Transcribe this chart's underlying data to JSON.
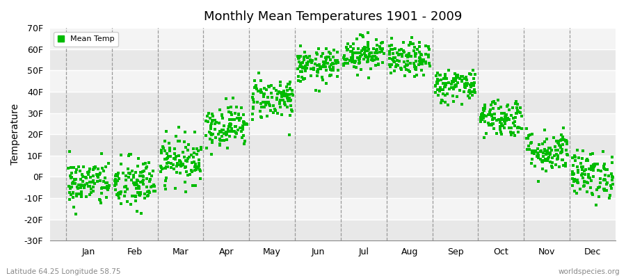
{
  "title": "Monthly Mean Temperatures 1901 - 2009",
  "ylabel": "Temperature",
  "bottom_left_label": "Latitude 64.25 Longitude 58.75",
  "bottom_right_label": "worldspecies.org",
  "legend_label": "Mean Temp",
  "ylim": [
    -30,
    70
  ],
  "yticks": [
    -30,
    -20,
    -10,
    0,
    10,
    20,
    30,
    40,
    50,
    60,
    70
  ],
  "ytick_labels": [
    "-30F",
    "-20F",
    "-10F",
    "0F",
    "10F",
    "20F",
    "30F",
    "40F",
    "50F",
    "60F",
    "70F"
  ],
  "months": [
    "Jan",
    "Feb",
    "Mar",
    "Apr",
    "May",
    "Jun",
    "Jul",
    "Aug",
    "Sep",
    "Oct",
    "Nov",
    "Dec"
  ],
  "dot_color": "#00BB00",
  "background_color": "#ffffff",
  "band_color1": "#e8e8e8",
  "band_color2": "#f4f4f4",
  "n_years": 109,
  "mean_temps_F": [
    -3.0,
    -3.5,
    8.0,
    24.0,
    37.0,
    52.0,
    58.0,
    55.0,
    43.0,
    28.0,
    12.0,
    1.0
  ],
  "std_temps_F": [
    5.5,
    6.5,
    5.5,
    5.0,
    5.0,
    4.0,
    4.0,
    4.0,
    4.0,
    4.5,
    5.0,
    5.5
  ],
  "seed": 42
}
